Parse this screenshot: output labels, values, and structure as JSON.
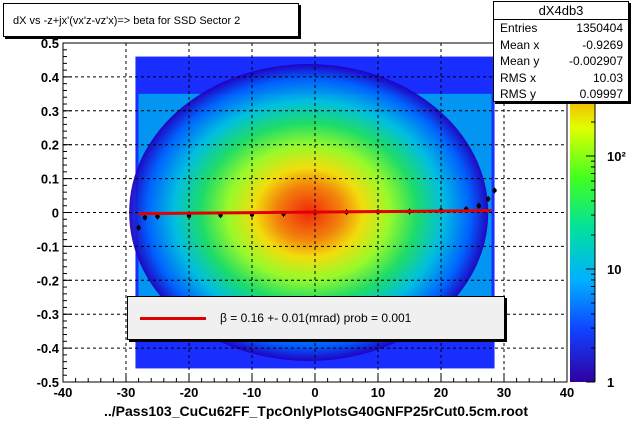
{
  "chart_data": {
    "type": "heatmap",
    "title": "dX vs  -z+jx'(vx'z-vz'x)=> beta  for SSD Sector 2",
    "xlabel": "../Pass103_CuCu62FF_TpcOnlyPlotsG40GNFP25rCut0.5cm.root",
    "ylabel": "",
    "xlim": [
      -40,
      40
    ],
    "ylim": [
      -0.5,
      0.5
    ],
    "x_ticks": [
      "-40",
      "-30",
      "-20",
      "-10",
      "0",
      "10",
      "20",
      "30",
      "40"
    ],
    "y_ticks": [
      "-0.5",
      "-0.4",
      "-0.3",
      "-0.2",
      "-0.1",
      "0",
      "0.1",
      "0.2",
      "0.3",
      "0.4",
      "0.5"
    ],
    "grid": true,
    "colorbar": {
      "scale": "log",
      "range": [
        1,
        1000
      ],
      "tick_labels": [
        "1",
        "10",
        "10²"
      ]
    },
    "profile_series": {
      "name": "profile",
      "x": [
        -28,
        -27,
        -25,
        -20,
        -15,
        -10,
        -5,
        0,
        5,
        10,
        15,
        20,
        24,
        26,
        27.5,
        28.5
      ],
      "y": [
        -0.045,
        -0.015,
        -0.012,
        -0.01,
        -0.008,
        -0.006,
        -0.004,
        0.0,
        0.001,
        0.002,
        0.003,
        0.006,
        0.01,
        0.02,
        0.04,
        0.065
      ]
    },
    "fit": {
      "name": "β",
      "x": [
        -28,
        28
      ],
      "y": [
        -0.0035,
        0.0056
      ]
    },
    "stats": {
      "name": "dX4db3",
      "rows": [
        {
          "label": "Entries",
          "value": "1350404"
        },
        {
          "label": "Mean x",
          "value": "-0.9269"
        },
        {
          "label": "Mean y",
          "value": "-0.002907"
        },
        {
          "label": "RMS x",
          "value": "10.03"
        },
        {
          "label": "RMS y",
          "value": "0.09997"
        }
      ]
    },
    "legend": {
      "placement": "bottom-center",
      "text": "β =     0.16 +-     0.01(mrad) prob = 0.001"
    }
  }
}
